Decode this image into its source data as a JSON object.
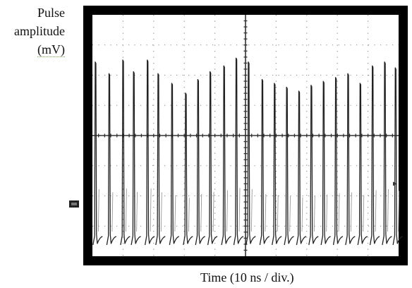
{
  "chart_data": {
    "type": "line",
    "ylabel_lines": [
      "Pulse",
      "amplitude",
      "(mV)"
    ],
    "xlabel": "Time (10 ns / div.)",
    "x_divisions": 10,
    "y_divisions": 8,
    "x_range_ns": [
      0,
      100
    ],
    "grid": true,
    "series": [
      {
        "pulse_times_ns": [
          1,
          5.5,
          10,
          13.5,
          18,
          21.5,
          26,
          30.5,
          34.5,
          38.5,
          43,
          47,
          51,
          55.5,
          59.5,
          63.5,
          67.5,
          71.5,
          75.5,
          79.5,
          83.5,
          87.5,
          91.5,
          95.5,
          99
        ],
        "relative_peak_heights": [
          0.91,
          0.85,
          0.92,
          0.86,
          0.92,
          0.85,
          0.8,
          0.75,
          0.82,
          0.86,
          0.89,
          0.93,
          0.91,
          0.82,
          0.8,
          0.78,
          0.76,
          0.79,
          0.81,
          0.83,
          0.85,
          0.8,
          0.89,
          0.91,
          0.88
        ]
      }
    ]
  }
}
